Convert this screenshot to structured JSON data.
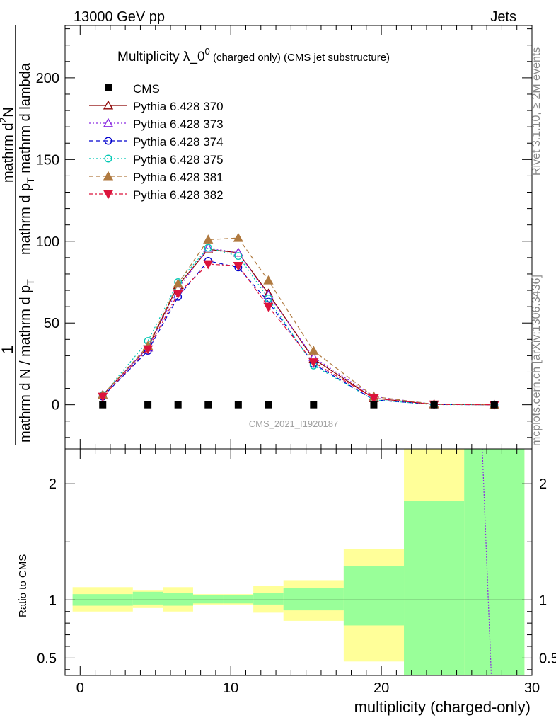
{
  "header": {
    "left": "13000 GeV pp",
    "right": "Jets"
  },
  "side_texts": {
    "rivet": "Rivet 3.1.10, ≥ 2M events",
    "mcplots": "mcplots.cern.ch [arXiv:1306.3436]"
  },
  "title": {
    "main": "Multiplicity λ_0",
    "sup": "0",
    "small": " (charged only) (CMS jet substructure)"
  },
  "analysis_label": "CMS_2021_I1920187",
  "ylabel_top": {
    "one": "1",
    "den": "mathrm d N / mathrm d p",
    "den_sub": "T",
    "num_line1": "mathrm d",
    "num_sup": "2",
    "num_line2": "N",
    "num_den": "mathrm d p",
    "num_den_sub": "T",
    "num_den_rest": " mathrm d lambda"
  },
  "ylabel_ratio": "Ratio to CMS",
  "xlabel": "multiplicity (charged-only)",
  "chart_data": {
    "type": "line",
    "x_range": [
      -1,
      30
    ],
    "main_y_range": [
      -27,
      232
    ],
    "main_y_ticks": [
      "0",
      "50",
      "100",
      "150",
      "200"
    ],
    "ratio_y_range": [
      0.35,
      2.3
    ],
    "ratio_y_ticks": [
      "0.5",
      "1",
      "2"
    ],
    "x_ticks": [
      "0",
      "10",
      "20",
      "30"
    ],
    "bins": [
      [
        -0.5,
        3.5
      ],
      [
        3.5,
        5.5
      ],
      [
        5.5,
        7.5
      ],
      [
        7.5,
        9.5
      ],
      [
        9.5,
        11.5
      ],
      [
        11.5,
        13.5
      ],
      [
        13.5,
        17.5
      ],
      [
        17.5,
        21.5
      ],
      [
        21.5,
        25.5
      ],
      [
        25.5,
        29.5
      ]
    ],
    "x": [
      1.5,
      4.5,
      6.5,
      8.5,
      10.5,
      12.5,
      15.5,
      19.5,
      23.5,
      27.5
    ],
    "data": {
      "name": "CMS",
      "values": [
        0,
        0,
        0,
        0,
        0,
        0,
        0,
        0,
        0,
        0
      ]
    },
    "series": [
      {
        "name": "Pythia 6.428 370",
        "color": "#8b0000",
        "marker": "triangle-open",
        "dash": "",
        "values": [
          6,
          35,
          73,
          95,
          93,
          68,
          28,
          4,
          0.2,
          0
        ]
      },
      {
        "name": "Pythia 6.428 373",
        "color": "#8a2be2",
        "marker": "triangle-open",
        "dash": "2,3",
        "values": [
          6,
          35,
          71,
          96,
          93,
          67,
          29,
          5,
          0.3,
          0.02
        ]
      },
      {
        "name": "Pythia 6.428 374",
        "color": "#0000cd",
        "marker": "circle-open",
        "dash": "6,4",
        "values": [
          5,
          33,
          66,
          88,
          84,
          63,
          25,
          3,
          0.15,
          0
        ]
      },
      {
        "name": "Pythia 6.428 375",
        "color": "#00c8b4",
        "marker": "circle-open",
        "dash": "2,3",
        "values": [
          6,
          39,
          75,
          96,
          91,
          65,
          24,
          3,
          0.1,
          0
        ]
      },
      {
        "name": "Pythia 6.428 381",
        "color": "#b07a40",
        "marker": "triangle-filled",
        "dash": "6,4",
        "values": [
          6,
          36,
          74,
          101,
          102,
          76,
          33,
          5,
          0.3,
          0
        ]
      },
      {
        "name": "Pythia 6.428 382",
        "color": "#dc143c",
        "marker": "triangle-down-filled",
        "dash": "6,3,2,3",
        "values": [
          5,
          34,
          68,
          86,
          85,
          60,
          26,
          4,
          0.2,
          0
        ]
      }
    ],
    "ratio": {
      "band_colors": {
        "inner": "#99ff99",
        "outer": "#ffff99"
      },
      "green_band": [
        [
          0.95,
          1.05
        ],
        [
          0.96,
          1.07
        ],
        [
          0.95,
          1.06
        ],
        [
          0.97,
          1.04
        ],
        [
          0.97,
          1.04
        ],
        [
          0.96,
          1.06
        ],
        [
          0.91,
          1.1
        ],
        [
          0.78,
          1.29
        ],
        [
          0.3,
          1.85
        ],
        [
          0.3,
          2.5
        ]
      ],
      "yellow_band": [
        [
          0.9,
          1.11
        ],
        [
          0.93,
          1.08
        ],
        [
          0.9,
          1.11
        ],
        [
          0.96,
          1.05
        ],
        [
          0.96,
          1.05
        ],
        [
          0.89,
          1.12
        ],
        [
          0.82,
          1.17
        ],
        [
          0.47,
          1.44
        ],
        [
          0.3,
          2.5
        ],
        [
          0.3,
          2.5
        ]
      ],
      "ratio_line": {
        "name": "Pythia 6.428 373",
        "x": [
          26.7,
          27.3
        ],
        "y": [
          2.3,
          0.35
        ]
      }
    }
  }
}
